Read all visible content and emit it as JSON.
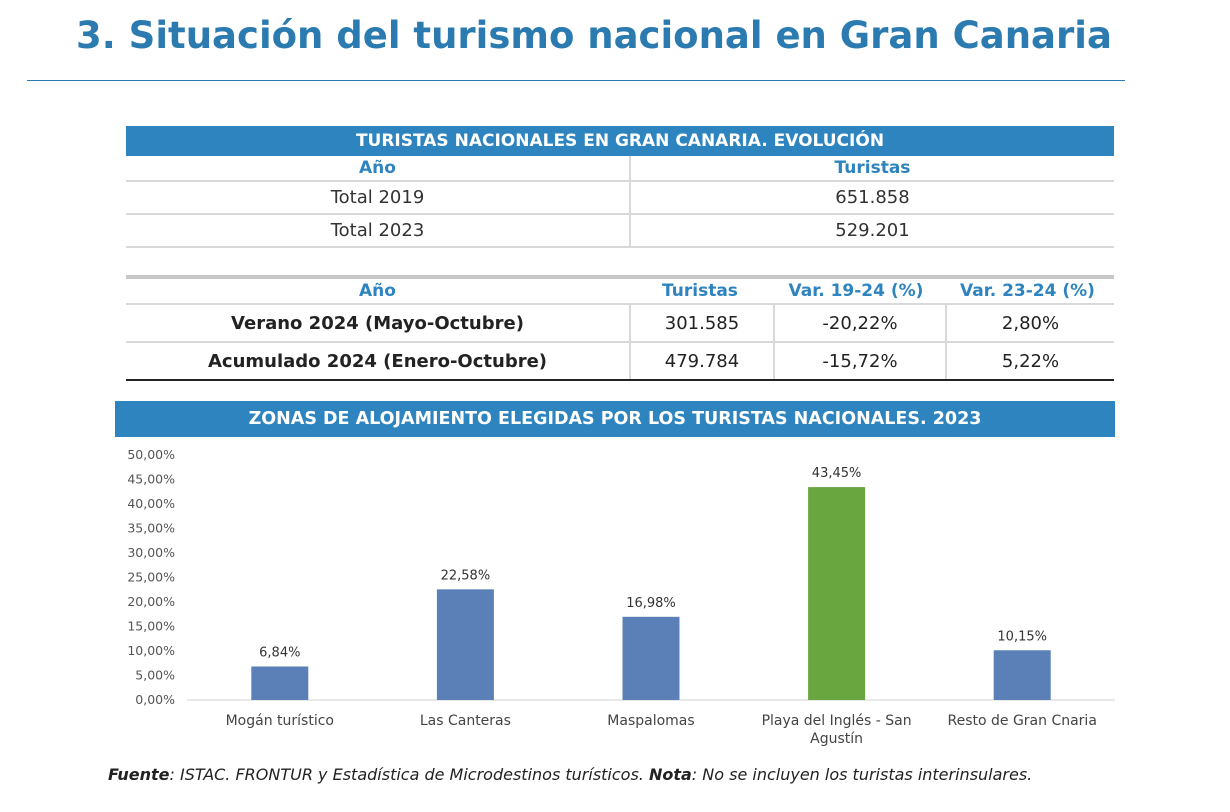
{
  "page": {
    "title": "3. Situación del turismo nacional en Gran Canaria"
  },
  "table1": {
    "title": "TURISTAS NACIONALES EN GRAN CANARIA. EVOLUCIÓN",
    "headers": [
      "Año",
      "Turistas"
    ],
    "rows": [
      [
        "Total 2019",
        "651.858"
      ],
      [
        "Total 2023",
        "529.201"
      ]
    ]
  },
  "table2": {
    "headers": [
      "Año",
      "Turistas",
      "Var. 19-24 (%)",
      "Var. 23-24 (%)"
    ],
    "rows": [
      [
        "Verano 2024 (Mayo-Octubre)",
        "301.585",
        "-20,22%",
        "2,80%"
      ],
      [
        "Acumulado 2024 (Enero-Octubre)",
        "479.784",
        "-15,72%",
        "5,22%"
      ]
    ]
  },
  "chart_data": {
    "type": "bar",
    "title": "ZONAS DE ALOJAMIENTO ELEGIDAS POR LOS TURISTAS NACIONALES. 2023",
    "categories": [
      "Mogán turístico",
      "Las Canteras",
      "Maspalomas",
      "Playa del Inglés - San Agustín",
      "Resto de Gran Cnaria"
    ],
    "values": [
      6.84,
      22.58,
      16.98,
      43.45,
      10.15
    ],
    "value_labels": [
      "6,84%",
      "22,58%",
      "16,98%",
      "43,45%",
      "10,15%"
    ],
    "y_ticks": [
      "0,00%",
      "5,00%",
      "10,00%",
      "15,00%",
      "20,00%",
      "25,00%",
      "30,00%",
      "35,00%",
      "40,00%",
      "45,00%",
      "50,00%"
    ],
    "ylim": [
      0,
      50
    ],
    "xlabel": "",
    "ylabel": "",
    "grid": false,
    "colors": {
      "default_bar": "#5b80b8",
      "highlight_bar": "#6aa640",
      "header": "#2e84bf"
    },
    "highlight_index": 3
  },
  "footer": {
    "fuente_label": "Fuente",
    "fuente_text": ": ISTAC. FRONTUR y Estadística de Microdestinos turísticos. ",
    "nota_label": "Nota",
    "nota_text": ": No se incluyen los turistas interinsulares."
  }
}
